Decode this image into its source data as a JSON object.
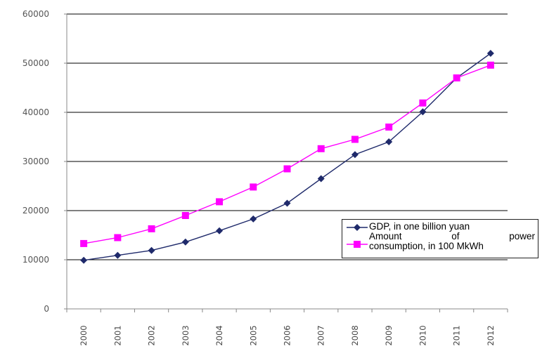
{
  "chart_data": {
    "type": "line",
    "categories": [
      "2000",
      "2001",
      "2002",
      "2003",
      "2004",
      "2005",
      "2006",
      "2007",
      "2008",
      "2009",
      "2010",
      "2011",
      "2012"
    ],
    "series": [
      {
        "name": "GDP, in one billion yuan",
        "color": "#1f2a6b",
        "marker": "diamond",
        "values": [
          9900,
          10900,
          11900,
          13600,
          15900,
          18300,
          21500,
          26500,
          31400,
          34000,
          40100,
          47000,
          52000
        ]
      },
      {
        "name": "Amount of power consumption, in 100 MkWh",
        "color": "#ff00ff",
        "marker": "square",
        "values": [
          13300,
          14500,
          16300,
          19000,
          21800,
          24800,
          28500,
          32600,
          34500,
          37000,
          41900,
          47000,
          49600
        ]
      }
    ],
    "ylim": [
      0,
      60000
    ],
    "yticks": [
      "0",
      "10000",
      "20000",
      "30000",
      "40000",
      "50000",
      "60000"
    ],
    "xlabel": "",
    "ylabel": "",
    "title": "",
    "grid": "horizontal",
    "legend_placement": "right"
  },
  "legend": {
    "gdp_label": "GDP, in one billion yuan",
    "power_line1": "Amount of power",
    "power_line2": "consumption, in 100 MkWh"
  }
}
